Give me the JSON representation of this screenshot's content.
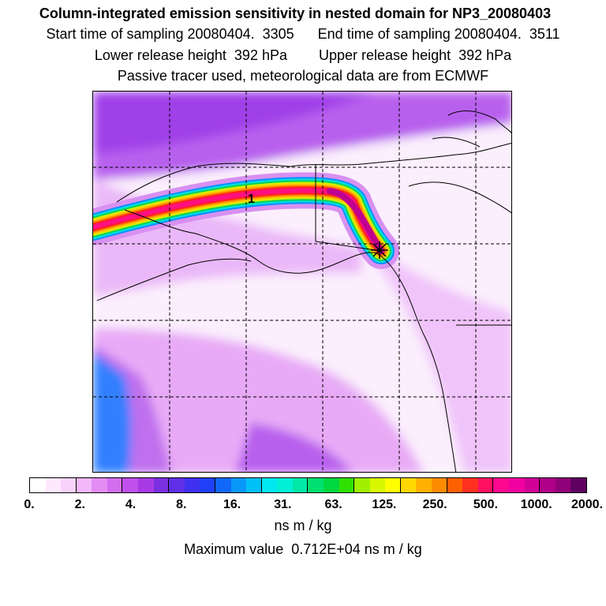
{
  "title": {
    "line1": "Column-integrated emission sensitivity in nested domain for NP3_20080403",
    "line2": "Start time of sampling 20080404.  3305      End time of sampling 20080404.  3511",
    "line3": "Lower release height  392 hPa        Upper release height  392 hPa",
    "line4": "Passive tracer used, meteorological data are from ECMWF"
  },
  "map": {
    "release_label": "1",
    "grid": "dashed",
    "plume_colors": [
      "#0090ff",
      "#00e0e0",
      "#00d060",
      "#d0f000",
      "#ffc800",
      "#ff8000",
      "#ff2020",
      "#ff1080",
      "#c00090"
    ],
    "background_colors": {
      "light": "#f4ccfa",
      "mid": "#d890f0",
      "dark": "#a040e8",
      "blue": "#3080ff"
    }
  },
  "colorbar": {
    "colors": [
      "#ffffff",
      "#fde8fe",
      "#f9d2fc",
      "#f3b8fa",
      "#e28cf4",
      "#d36ef0",
      "#c050ec",
      "#a83ae6",
      "#7a30e0",
      "#6030e8",
      "#4030f0",
      "#2040f8",
      "#1068f8",
      "#0898f8",
      "#00c0f8",
      "#00e8f0",
      "#00f0d8",
      "#00e8a8",
      "#00e070",
      "#00d840",
      "#30e000",
      "#a0f000",
      "#d8f800",
      "#ffff00",
      "#ffd800",
      "#ffb000",
      "#ff8c00",
      "#ff6000",
      "#ff3020",
      "#ff1060",
      "#ff0890",
      "#f000a0",
      "#d00098",
      "#b00088",
      "#900078",
      "#600060"
    ],
    "tick_labels": [
      "0.",
      "2.",
      "4.",
      "8.",
      "16.",
      "31.",
      "63.",
      "125.",
      "250.",
      "500.",
      "1000.",
      "2000."
    ],
    "units": "ns m / kg"
  },
  "max_value_text": "Maximum value  0.712E+04 ns m / kg"
}
